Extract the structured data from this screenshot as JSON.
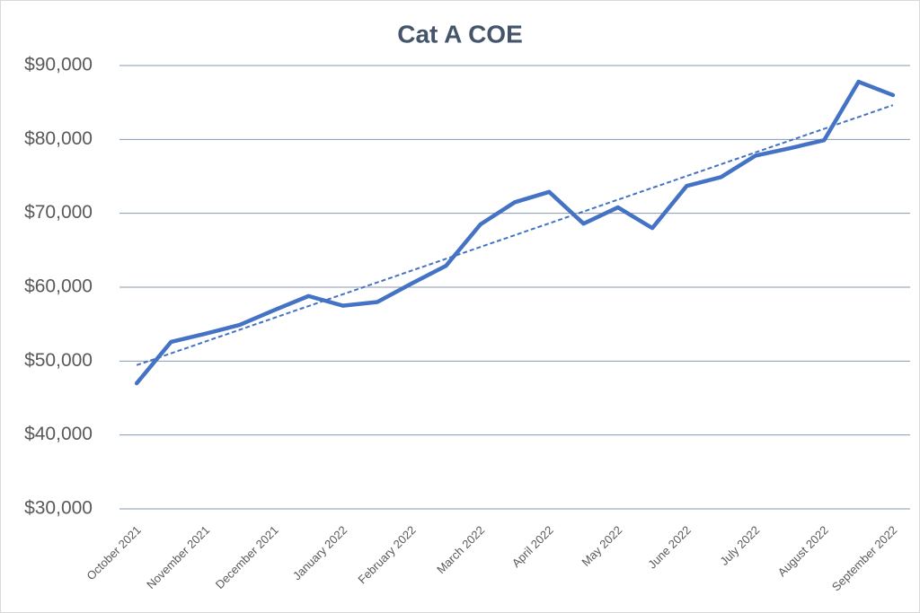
{
  "chart_data": {
    "type": "line",
    "title": "Cat A COE",
    "categories": [
      "October 2021",
      null,
      "November 2021",
      null,
      "December 2021",
      null,
      "January 2022",
      null,
      "February 2022",
      null,
      "March 2022",
      null,
      "April 2022",
      null,
      "May 2022",
      null,
      "June 2022",
      null,
      "July 2022",
      null,
      "August 2022",
      null,
      "September 2022"
    ],
    "series": [
      {
        "color": "#4472c4",
        "values": [
          47000,
          52600,
          53700,
          54900,
          56900,
          58800,
          57500,
          58000,
          60500,
          62900,
          68500,
          71500,
          72900,
          68600,
          70800,
          68000,
          73700,
          74900,
          77800,
          78800,
          79900,
          87800,
          86000
        ]
      }
    ],
    "trendline": "linear",
    "ylim": [
      30000,
      90000
    ],
    "yticks": [
      {
        "value": 30000,
        "label": "$30,000"
      },
      {
        "value": 40000,
        "label": "$40,000"
      },
      {
        "value": 50000,
        "label": "$50,000"
      },
      {
        "value": 60000,
        "label": "$60,000"
      },
      {
        "value": 70000,
        "label": "$70,000"
      },
      {
        "value": 80000,
        "label": "$80,000"
      },
      {
        "value": 90000,
        "label": "$90,000"
      }
    ],
    "grid": true
  }
}
